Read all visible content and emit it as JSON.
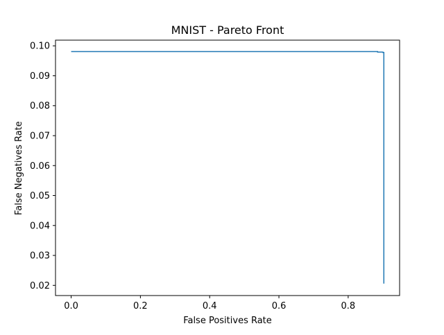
{
  "chart_data": {
    "type": "line",
    "title": "MNIST - Pareto Front",
    "xlabel": "False Positives Rate",
    "ylabel": "False Negatives Rate",
    "xlim": [
      -0.0452,
      0.9485
    ],
    "ylim": [
      0.0166,
      0.1019
    ],
    "x_ticks": [
      0.0,
      0.2,
      0.4,
      0.6,
      0.8
    ],
    "x_tick_labels": [
      "0.0",
      "0.2",
      "0.4",
      "0.6",
      "0.8"
    ],
    "y_ticks": [
      0.02,
      0.03,
      0.04,
      0.05,
      0.06,
      0.07,
      0.08,
      0.09,
      0.1
    ],
    "y_tick_labels": [
      "0.02",
      "0.03",
      "0.04",
      "0.05",
      "0.06",
      "0.07",
      "0.08",
      "0.09",
      "0.10"
    ],
    "grid": false,
    "legend": "none",
    "series": [
      {
        "color": "#1f77b4",
        "x": [
          0.0,
          0.885,
          0.885,
          0.9,
          0.9,
          0.903,
          0.903
        ],
        "y": [
          0.0981,
          0.0981,
          0.0979,
          0.0979,
          0.0978,
          0.0978,
          0.0206
        ]
      }
    ]
  }
}
